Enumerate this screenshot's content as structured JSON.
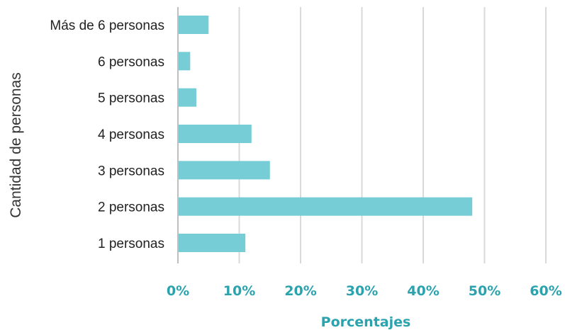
{
  "chart_data": {
    "type": "bar",
    "orientation": "horizontal",
    "categories": [
      "Más de 6 personas",
      "6 personas",
      "5 personas",
      "4 personas",
      "3 personas",
      "2 personas",
      "1 personas"
    ],
    "series": [
      {
        "values": [
          5,
          2,
          3,
          12,
          15,
          48,
          11
        ]
      }
    ],
    "xlabel": "Porcentajes",
    "ylabel": "Cantidad de personas",
    "xlim": [
      0,
      60
    ],
    "x_ticks": [
      "0%",
      "10%",
      "20%",
      "30%",
      "40%",
      "50%",
      "60%"
    ],
    "grid": "vertical",
    "legend": "none",
    "colors": {
      "bar": "#76CDD6",
      "tick": "#2AA3AE",
      "grid": "#D9D9D9",
      "axis": "#BFBFBF"
    }
  }
}
